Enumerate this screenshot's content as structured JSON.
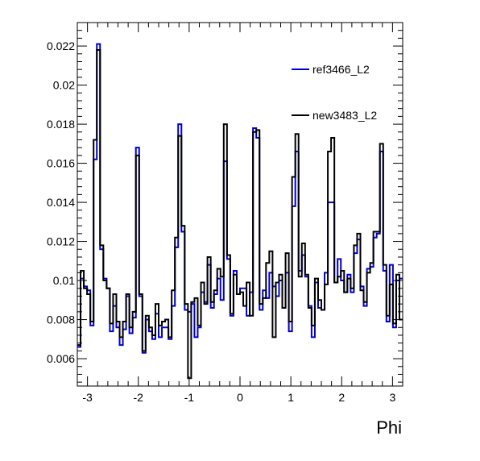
{
  "chart_data": {
    "type": "histogram",
    "xlabel": "Phi",
    "ylabel": "",
    "xlim": [
      -3.2,
      3.2
    ],
    "ylim": [
      0.0046,
      0.0232
    ],
    "xticks": [
      -3,
      -2,
      -1,
      0,
      1,
      2,
      3
    ],
    "xtick_labels": [
      "-3",
      "-2",
      "-1",
      "0",
      "1",
      "2",
      "3"
    ],
    "yticks": [
      0.006,
      0.008,
      0.01,
      0.012,
      0.014,
      0.016,
      0.018,
      0.02,
      0.022
    ],
    "ytick_labels": [
      "0.006",
      "0.008",
      "0.01",
      "0.012",
      "0.014",
      "0.016",
      "0.018",
      "0.02",
      "0.022"
    ],
    "grid": false,
    "legend_position": "top-right",
    "bins": 100,
    "series": [
      {
        "name": "ref3466_L2",
        "color": "#0000cc",
        "values": [
          0.0066,
          0.0101,
          0.0097,
          0.0095,
          0.0077,
          0.0162,
          0.0221,
          0.0116,
          0.0101,
          0.0096,
          0.0074,
          0.0087,
          0.0076,
          0.0067,
          0.0075,
          0.0092,
          0.0073,
          0.0081,
          0.0168,
          0.0092,
          0.0063,
          0.008,
          0.0074,
          0.007,
          0.0083,
          0.0071,
          0.0076,
          0.0076,
          0.007,
          0.0087,
          0.0117,
          0.018,
          0.0125,
          0.0085,
          0.0084,
          0.0088,
          0.0071,
          0.0076,
          0.0094,
          0.0089,
          0.0108,
          0.0086,
          0.0093,
          0.0101,
          0.009,
          0.0161,
          0.0111,
          0.0082,
          0.0105,
          0.0093,
          0.0096,
          0.0096,
          0.0082,
          0.0094,
          0.0178,
          0.0173,
          0.0085,
          0.0095,
          0.0091,
          0.0104,
          0.0097,
          0.0092,
          0.01,
          0.0086,
          0.0104,
          0.0074,
          0.0138,
          0.0166,
          0.0105,
          0.0113,
          0.0102,
          0.0087,
          0.0071,
          0.0099,
          0.0086,
          0.0085,
          0.0104,
          0.014,
          0.014,
          0.0099,
          0.0111,
          0.01,
          0.0094,
          0.0103,
          0.0094,
          0.0114,
          0.0121,
          0.0097,
          0.0087,
          0.0106,
          0.0107,
          0.0122,
          0.0124,
          0.0166,
          0.0105,
          0.0079,
          0.0108,
          0.0076,
          0.01,
          0.0101
        ]
      },
      {
        "name": "new3483_L2",
        "color": "#000000",
        "values": [
          0.0067,
          0.0105,
          0.0096,
          0.0093,
          0.0079,
          0.0172,
          0.0218,
          0.0118,
          0.01,
          0.0096,
          0.0078,
          0.0093,
          0.0079,
          0.0071,
          0.0079,
          0.0093,
          0.0076,
          0.0084,
          0.0164,
          0.0093,
          0.0064,
          0.0082,
          0.0076,
          0.0072,
          0.0088,
          0.0077,
          0.0079,
          0.008,
          0.0071,
          0.0095,
          0.0122,
          0.0174,
          0.0128,
          0.0088,
          0.005,
          0.0089,
          0.0091,
          0.0077,
          0.0099,
          0.0088,
          0.0112,
          0.0089,
          0.0095,
          0.0106,
          0.0102,
          0.018,
          0.0113,
          0.0083,
          0.0103,
          0.0093,
          0.0094,
          0.0087,
          0.0099,
          0.0082,
          0.0176,
          0.0177,
          0.0088,
          0.0091,
          0.0109,
          0.0115,
          0.0071,
          0.0099,
          0.0103,
          0.0086,
          0.0114,
          0.0079,
          0.0153,
          0.0175,
          0.0102,
          0.0119,
          0.0103,
          0.0086,
          0.0077,
          0.0101,
          0.009,
          0.0085,
          0.0098,
          0.0166,
          0.0173,
          0.0099,
          0.0102,
          0.0105,
          0.0094,
          0.0101,
          0.0096,
          0.0118,
          0.0124,
          0.0095,
          0.0089,
          0.0104,
          0.0109,
          0.0125,
          0.0125,
          0.017,
          0.0108,
          0.0082,
          0.0098,
          0.0078,
          0.0103,
          0.008
        ]
      }
    ]
  }
}
